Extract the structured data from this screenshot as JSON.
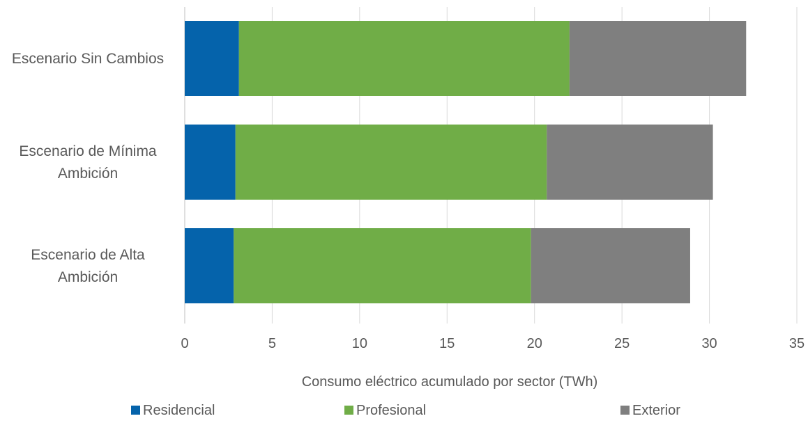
{
  "chart_data": {
    "type": "bar",
    "orientation": "horizontal",
    "stacked": true,
    "categories": [
      [
        "Escenario Sin Cambios"
      ],
      [
        "Escenario de Mínima",
        "Ambición"
      ],
      [
        "Escenario de Alta",
        "Ambición"
      ]
    ],
    "series": [
      {
        "name": "Residencial",
        "color": "#0563AB",
        "values": [
          3.1,
          2.9,
          2.8
        ]
      },
      {
        "name": "Profesional",
        "color": "#70AD47",
        "values": [
          18.9,
          17.8,
          17.0
        ]
      },
      {
        "name": "Exterior",
        "color": "#7F7F7F",
        "values": [
          10.1,
          9.5,
          9.1
        ]
      }
    ],
    "xlabel": "Consumo eléctrico acumulado por sector (TWh)",
    "xlim": [
      0,
      35
    ],
    "xticks": [
      0,
      5,
      10,
      15,
      20,
      25,
      30,
      35
    ],
    "grid": "vertical",
    "legend_position": "bottom"
  }
}
